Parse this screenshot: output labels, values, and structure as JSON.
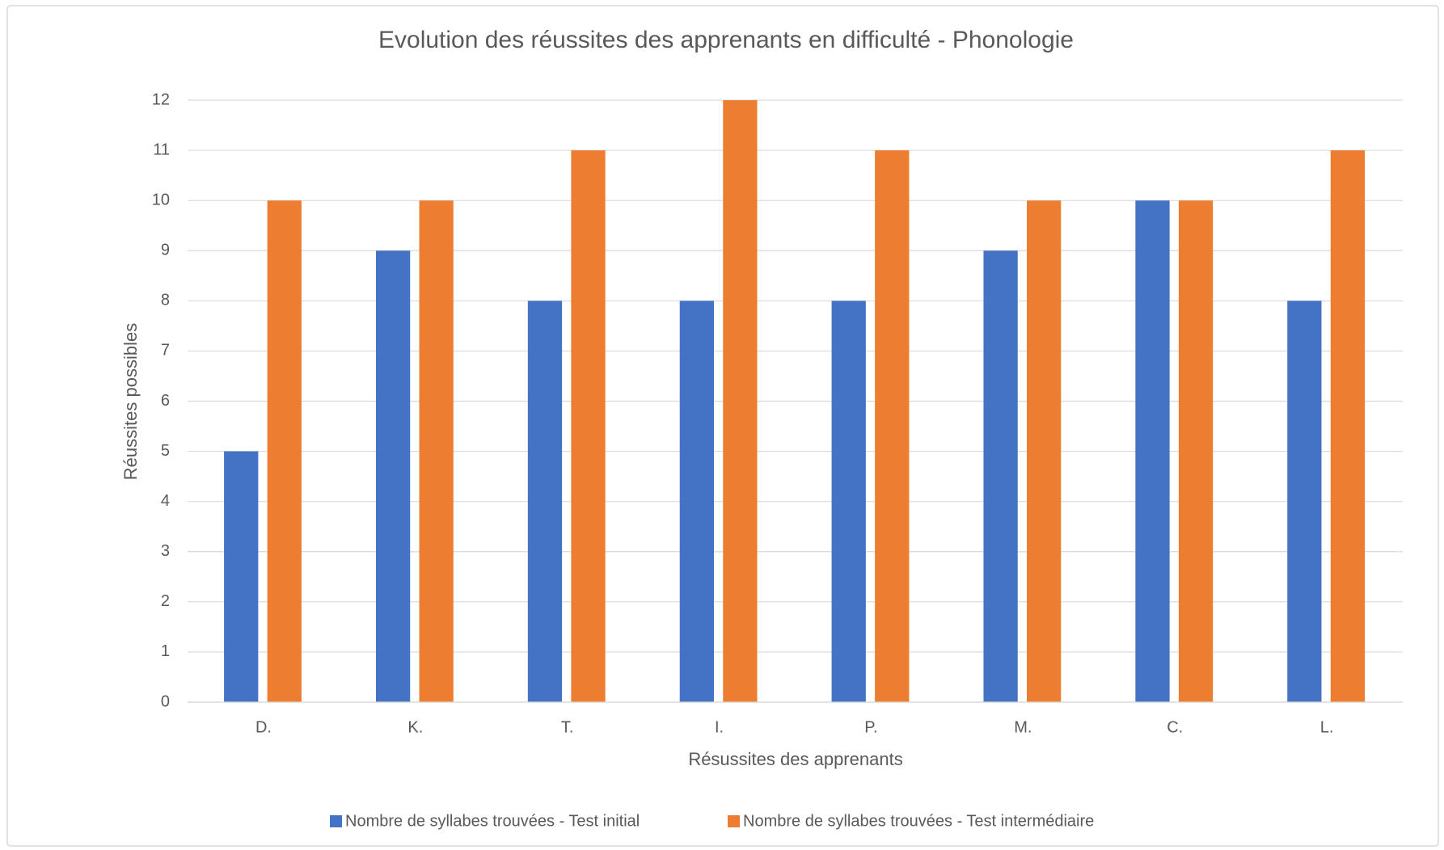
{
  "chart_data": {
    "type": "bar",
    "title": "Evolution des réussites des apprenants en difficulté - Phonologie",
    "x_label": "Résussites des apprenants",
    "y_label": "Réussites possibles",
    "categories": [
      "D.",
      "K.",
      "T.",
      "I.",
      "P.",
      "M.",
      "C.",
      "L."
    ],
    "series": [
      {
        "name": "Nombre de syllabes trouvées - Test initial",
        "color": "#4472c4",
        "values": [
          5,
          9,
          8,
          8,
          8,
          9,
          10,
          8
        ]
      },
      {
        "name": "Nombre de syllabes trouvées - Test intermédiaire",
        "color": "#ed7d31",
        "values": [
          10,
          10,
          11,
          12,
          11,
          10,
          10,
          11
        ]
      }
    ],
    "ylim": [
      0,
      12
    ],
    "yticks": [
      0,
      1,
      2,
      3,
      4,
      5,
      6,
      7,
      8,
      9,
      10,
      11,
      12
    ],
    "grid": true,
    "legend": "bottom"
  }
}
